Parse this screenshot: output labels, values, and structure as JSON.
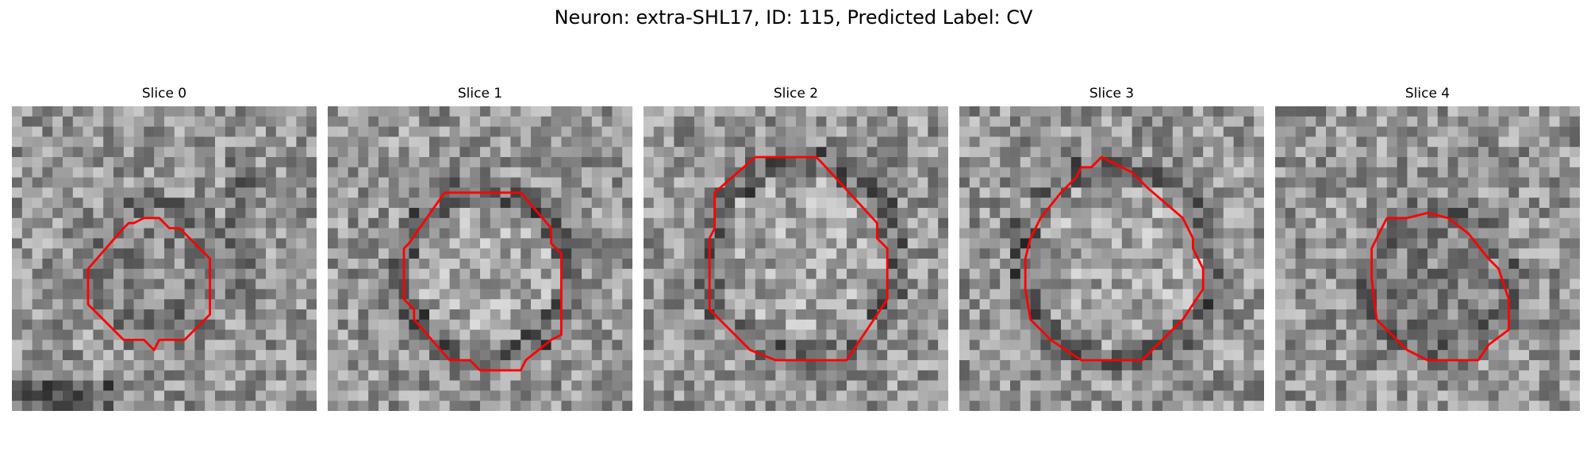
{
  "figure": {
    "title": "Neuron: extra-SHL17, ID: 115, Predicted Label: CV",
    "contour_color": "#ff0000"
  },
  "panels": [
    {
      "title": "Slice 0"
    },
    {
      "title": "Slice 1"
    },
    {
      "title": "Slice 2"
    },
    {
      "title": "Slice 3"
    },
    {
      "title": "Slice 4"
    }
  ]
}
